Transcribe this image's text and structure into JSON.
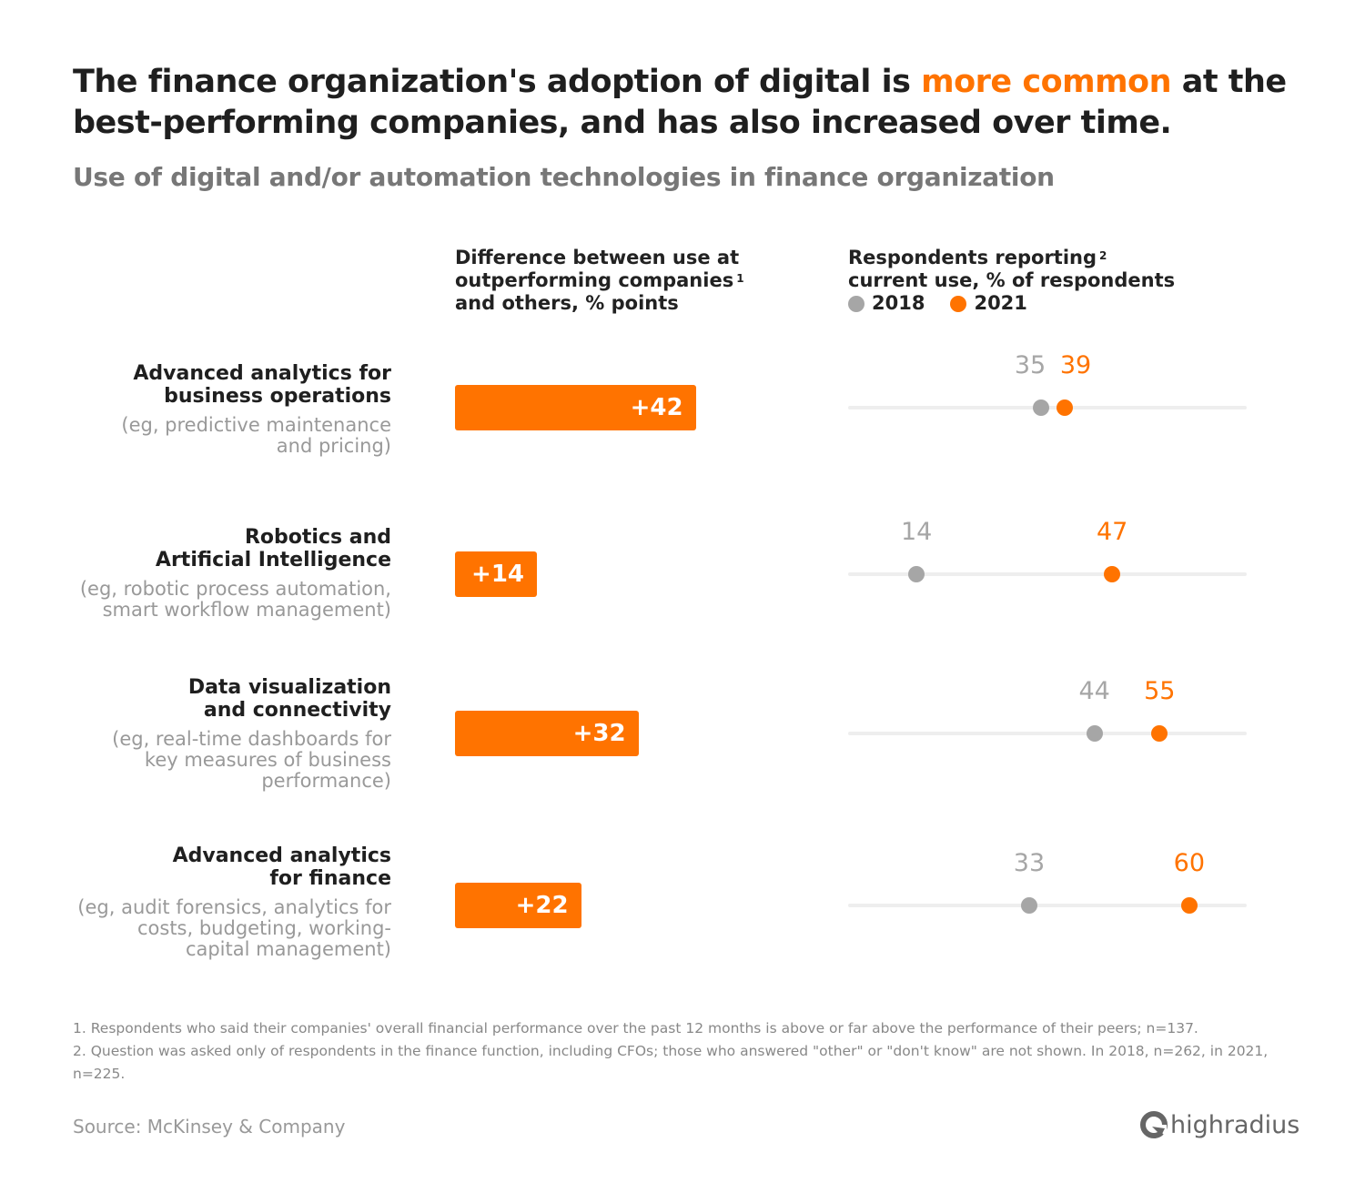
{
  "title": {
    "part1": "The finance organization's adoption of digital is ",
    "highlight": "more common",
    "part2": " at the best-performing companies, and has also increased over time."
  },
  "subtitle": "Use of digital and/or automation technologies in finance organization",
  "colors": {
    "accent": "#ff7300",
    "gray": "#a6a6a6",
    "track": "#eeeeee"
  },
  "chart_data": {
    "type": "bar+dot",
    "column_headers": {
      "difference": {
        "lines": [
          "Difference between use at",
          "outperforming companies",
          "and others, % points"
        ],
        "footnote": "1"
      },
      "respondents": {
        "lines": [
          "Respondents reporting",
          "current use, % of respondents"
        ],
        "footnote": "2"
      }
    },
    "legend": [
      {
        "name": "2018",
        "color": "#a6a6a6"
      },
      {
        "name": "2021",
        "color": "#ff7300"
      }
    ],
    "dot_axis_range": [
      0,
      70
    ],
    "rows": [
      {
        "name": [
          "Advanced analytics for",
          "business operations"
        ],
        "desc": [
          "(eg, predictive maintenance",
          "and pricing)"
        ],
        "difference": 42,
        "difference_label": "+42",
        "y2018": 35,
        "y2021": 39
      },
      {
        "name": [
          "Robotics and",
          "Artificial Intelligence"
        ],
        "desc": [
          "(eg, robotic process automation,",
          "smart workflow management)"
        ],
        "difference": 14,
        "difference_label": "+14",
        "y2018": 14,
        "y2021": 47
      },
      {
        "name": [
          "Data visualization",
          "and connectivity"
        ],
        "desc": [
          "(eg, real-time dashboards for",
          "key measures of business",
          "performance)"
        ],
        "difference": 32,
        "difference_label": "+32",
        "y2018": 44,
        "y2021": 55
      },
      {
        "name": [
          "Advanced analytics",
          "for finance"
        ],
        "desc": [
          "(eg, audit forensics, analytics for",
          "costs, budgeting, working-",
          "capital management)"
        ],
        "difference": 22,
        "difference_label": "+22",
        "y2018": 33,
        "y2021": 60
      }
    ]
  },
  "footnotes": [
    "1. Respondents who said their companies' overall financial performance over the past 12 months is above or far above the performance of their peers; n=137.",
    "2. Question was asked only of respondents in the finance function, including CFOs; those who answered \"other\" or \"don't know\" are not shown. In 2018, n=262, in 2021, n=225."
  ],
  "source": "Source: McKinsey & Company",
  "logo": "highradius"
}
